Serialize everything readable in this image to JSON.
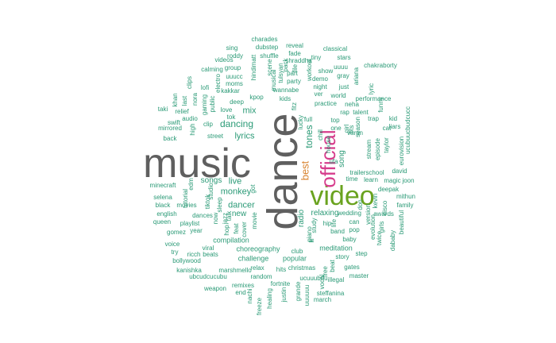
{
  "wordcloud": {
    "words": [
      {
        "text": "music",
        "color": "#5f5f5f"
      },
      {
        "text": "dance",
        "color": "#5f5f5f"
      },
      {
        "text": "video",
        "color": "#6aa31f"
      },
      {
        "text": "official",
        "color": "#d63d8c"
      },
      {
        "text": "best",
        "color": "#d8822d"
      },
      {
        "text": "tones",
        "color": "#2a9a76"
      },
      {
        "text": "dancing",
        "color": "#2a9a76"
      },
      {
        "text": "lyrics",
        "color": "#2a9a76"
      },
      {
        "text": "mix",
        "color": "#2a9a76"
      },
      {
        "text": "monkey",
        "color": "#2a9a76"
      },
      {
        "text": "live",
        "color": "#2a9a76"
      },
      {
        "text": "songs",
        "color": "#2a9a76"
      },
      {
        "text": "dancer",
        "color": "#2a9a76"
      },
      {
        "text": "new",
        "color": "#2a9a76"
      },
      {
        "text": "relaxing",
        "color": "#2a9a76"
      },
      {
        "text": "song",
        "color": "#2a9a76"
      },
      {
        "text": "radio",
        "color": "#2a9a76"
      },
      {
        "text": "charades",
        "color": "#2a9a76"
      },
      {
        "text": "dubstep",
        "color": "#2a9a76"
      },
      {
        "text": "reveal",
        "color": "#2a9a76"
      },
      {
        "text": "fade",
        "color": "#2a9a76"
      },
      {
        "text": "classical",
        "color": "#2a9a76"
      },
      {
        "text": "sing",
        "color": "#2a9a76"
      },
      {
        "text": "roddy",
        "color": "#2a9a76"
      },
      {
        "text": "shuffle",
        "color": "#2a9a76"
      },
      {
        "text": "shraddha",
        "color": "#2a9a76"
      },
      {
        "text": "tiny",
        "color": "#2a9a76"
      },
      {
        "text": "stars",
        "color": "#2a9a76"
      },
      {
        "text": "videos",
        "color": "#2a9a76"
      },
      {
        "text": "file",
        "color": "#2a9a76"
      },
      {
        "text": "show",
        "color": "#2a9a76"
      },
      {
        "text": "uuuu",
        "color": "#2a9a76"
      },
      {
        "text": "chakraborty",
        "color": "#2a9a76"
      },
      {
        "text": "group",
        "color": "#2a9a76"
      },
      {
        "text": "calming",
        "color": "#2a9a76"
      },
      {
        "text": "part",
        "color": "#2a9a76"
      },
      {
        "text": "gray",
        "color": "#2a9a76"
      },
      {
        "text": "uuucc",
        "color": "#2a9a76"
      },
      {
        "text": "demo",
        "color": "#2a9a76"
      },
      {
        "text": "moms",
        "color": "#2a9a76"
      },
      {
        "text": "party",
        "color": "#2a9a76"
      },
      {
        "text": "night",
        "color": "#2a9a76"
      },
      {
        "text": "just",
        "color": "#2a9a76"
      },
      {
        "text": "lofi",
        "color": "#2a9a76"
      },
      {
        "text": "kakkar",
        "color": "#2a9a76"
      },
      {
        "text": "wannabe",
        "color": "#2a9a76"
      },
      {
        "text": "ver",
        "color": "#2a9a76"
      },
      {
        "text": "world",
        "color": "#2a9a76"
      },
      {
        "text": "performance",
        "color": "#2a9a76"
      },
      {
        "text": "kpop",
        "color": "#2a9a76"
      },
      {
        "text": "kids",
        "color": "#2a9a76"
      },
      {
        "text": "practice",
        "color": "#2a9a76"
      },
      {
        "text": "neha",
        "color": "#2a9a76"
      },
      {
        "text": "deep",
        "color": "#2a9a76"
      },
      {
        "text": "rap",
        "color": "#2a9a76"
      },
      {
        "text": "talent",
        "color": "#2a9a76"
      },
      {
        "text": "love",
        "color": "#2a9a76"
      },
      {
        "text": "tok",
        "color": "#2a9a76"
      },
      {
        "text": "top",
        "color": "#2a9a76"
      },
      {
        "text": "trap",
        "color": "#2a9a76"
      },
      {
        "text": "kid",
        "color": "#2a9a76"
      },
      {
        "text": "clip",
        "color": "#2a9a76"
      },
      {
        "text": "one",
        "color": "#2a9a76"
      },
      {
        "text": "cat",
        "color": "#2a9a76"
      },
      {
        "text": "relief",
        "color": "#2a9a76"
      },
      {
        "text": "audio",
        "color": "#2a9a76"
      },
      {
        "text": "girl",
        "color": "#2a9a76"
      },
      {
        "text": "liars",
        "color": "#2a9a76"
      },
      {
        "text": "swift",
        "color": "#2a9a76"
      },
      {
        "text": "full",
        "color": "#2a9a76"
      },
      {
        "text": "taki",
        "color": "#2a9a76"
      },
      {
        "text": "mirrored",
        "color": "#2a9a76"
      },
      {
        "text": "street",
        "color": "#2a9a76"
      },
      {
        "text": "varun",
        "color": "#2a9a76"
      },
      {
        "text": "back",
        "color": "#2a9a76"
      },
      {
        "text": "house",
        "color": "#2a9a76"
      },
      {
        "text": "ufa",
        "color": "#2a9a76"
      },
      {
        "text": "time",
        "color": "#2a9a76"
      },
      {
        "text": "learn",
        "color": "#2a9a76"
      },
      {
        "text": "magic",
        "color": "#2a9a76"
      },
      {
        "text": "joon",
        "color": "#2a9a76"
      },
      {
        "text": "trailerschool",
        "color": "#2a9a76"
      },
      {
        "text": "david",
        "color": "#2a9a76"
      },
      {
        "text": "minecraft",
        "color": "#2a9a76"
      },
      {
        "text": "deepak",
        "color": "#2a9a76"
      },
      {
        "text": "selena",
        "color": "#2a9a76"
      },
      {
        "text": "mithun",
        "color": "#2a9a76"
      },
      {
        "text": "black",
        "color": "#2a9a76"
      },
      {
        "text": "movies",
        "color": "#2a9a76"
      },
      {
        "text": "family",
        "color": "#2a9a76"
      },
      {
        "text": "english",
        "color": "#2a9a76"
      },
      {
        "text": "dances",
        "color": "#2a9a76"
      },
      {
        "text": "wedding",
        "color": "#2a9a76"
      },
      {
        "text": "awards",
        "color": "#2a9a76"
      },
      {
        "text": "queen",
        "color": "#2a9a76"
      },
      {
        "text": "can",
        "color": "#2a9a76"
      },
      {
        "text": "playlist",
        "color": "#2a9a76"
      },
      {
        "text": "year",
        "color": "#2a9a76"
      },
      {
        "text": "hip",
        "color": "#2a9a76"
      },
      {
        "text": "pop",
        "color": "#2a9a76"
      },
      {
        "text": "band",
        "color": "#2a9a76"
      },
      {
        "text": "gomez",
        "color": "#2a9a76"
      },
      {
        "text": "compilation",
        "color": "#2a9a76"
      },
      {
        "text": "baby",
        "color": "#2a9a76"
      },
      {
        "text": "voice",
        "color": "#2a9a76"
      },
      {
        "text": "viral",
        "color": "#2a9a76"
      },
      {
        "text": "choreography",
        "color": "#2a9a76"
      },
      {
        "text": "meditation",
        "color": "#2a9a76"
      },
      {
        "text": "try",
        "color": "#2a9a76"
      },
      {
        "text": "ricch",
        "color": "#2a9a76"
      },
      {
        "text": "beats",
        "color": "#2a9a76"
      },
      {
        "text": "club",
        "color": "#2a9a76"
      },
      {
        "text": "step",
        "color": "#2a9a76"
      },
      {
        "text": "bollywood",
        "color": "#2a9a76"
      },
      {
        "text": "challenge",
        "color": "#2a9a76"
      },
      {
        "text": "popular",
        "color": "#2a9a76"
      },
      {
        "text": "story",
        "color": "#2a9a76"
      },
      {
        "text": "kanishka",
        "color": "#2a9a76"
      },
      {
        "text": "marshmello",
        "color": "#2a9a76"
      },
      {
        "text": "relax",
        "color": "#2a9a76"
      },
      {
        "text": "christmas",
        "color": "#2a9a76"
      },
      {
        "text": "gates",
        "color": "#2a9a76"
      },
      {
        "text": "ubcudcucubu",
        "color": "#2a9a76"
      },
      {
        "text": "random",
        "color": "#2a9a76"
      },
      {
        "text": "hits",
        "color": "#2a9a76"
      },
      {
        "text": "master",
        "color": "#2a9a76"
      },
      {
        "text": "fortnite",
        "color": "#2a9a76"
      },
      {
        "text": "ucuuubuu",
        "color": "#2a9a76"
      },
      {
        "text": "illegal",
        "color": "#2a9a76"
      },
      {
        "text": "weapon",
        "color": "#2a9a76"
      },
      {
        "text": "remixes",
        "color": "#2a9a76"
      },
      {
        "text": "end",
        "color": "#2a9a76"
      },
      {
        "text": "steffanina",
        "color": "#2a9a76"
      },
      {
        "text": "march",
        "color": "#2a9a76"
      },
      {
        "text": "hindimatt",
        "color": "#2a9a76"
      },
      {
        "text": "scene",
        "color": "#2a9a76"
      },
      {
        "text": "musical",
        "color": "#2a9a76"
      },
      {
        "text": "tulsyan",
        "color": "#2a9a76"
      },
      {
        "text": "pack",
        "color": "#2a9a76"
      },
      {
        "text": "workout",
        "color": "#2a9a76"
      },
      {
        "text": "gaming",
        "color": "#2a9a76"
      },
      {
        "text": "public",
        "color": "#2a9a76"
      },
      {
        "text": "electro",
        "color": "#2a9a76"
      },
      {
        "text": "last",
        "color": "#2a9a76"
      },
      {
        "text": "nora",
        "color": "#2a9a76"
      },
      {
        "text": "clips",
        "color": "#2a9a76"
      },
      {
        "text": "khan",
        "color": "#2a9a76"
      },
      {
        "text": "high",
        "color": "#2a9a76"
      },
      {
        "text": "sleep",
        "color": "#2a9a76"
      },
      {
        "text": "studio",
        "color": "#2a9a76"
      },
      {
        "text": "edm",
        "color": "#2a9a76"
      },
      {
        "text": "tutorial",
        "color": "#2a9a76"
      },
      {
        "text": "tiktok",
        "color": "#2a9a76"
      },
      {
        "text": "jazz",
        "color": "#2a9a76"
      },
      {
        "text": "hop",
        "color": "#2a9a76"
      },
      {
        "text": "feat",
        "color": "#2a9a76"
      },
      {
        "text": "cover",
        "color": "#2a9a76"
      },
      {
        "text": "movie",
        "color": "#2a9a76"
      },
      {
        "text": "got",
        "color": "#2a9a76"
      },
      {
        "text": "talk",
        "color": "#2a9a76"
      },
      {
        "text": "now",
        "color": "#2a9a76"
      },
      {
        "text": "chill",
        "color": "#2a9a76"
      },
      {
        "text": "piano",
        "color": "#2a9a76"
      },
      {
        "text": "study",
        "color": "#2a9a76"
      },
      {
        "text": "lil",
        "color": "#2a9a76"
      },
      {
        "text": "ariana",
        "color": "#2a9a76"
      },
      {
        "text": "lyric",
        "color": "#2a9a76"
      },
      {
        "text": "funny",
        "color": "#2a9a76"
      },
      {
        "text": "taylor",
        "color": "#2a9a76"
      },
      {
        "text": "stream",
        "color": "#2a9a76"
      },
      {
        "text": "episode",
        "color": "#2a9a76"
      },
      {
        "text": "season",
        "color": "#2a9a76"
      },
      {
        "text": "bts",
        "color": "#2a9a76"
      },
      {
        "text": "ucubuucbudcucc",
        "color": "#2a9a76"
      },
      {
        "text": "eurovision",
        "color": "#2a9a76"
      },
      {
        "text": "version",
        "color": "#2a9a76"
      },
      {
        "text": "evolution",
        "color": "#2a9a76"
      },
      {
        "text": "girls",
        "color": "#2a9a76"
      },
      {
        "text": "twice",
        "color": "#2a9a76"
      },
      {
        "text": "dababy",
        "color": "#2a9a76"
      },
      {
        "text": "beautiful",
        "color": "#2a9a76"
      },
      {
        "text": "disco",
        "color": "#2a9a76"
      },
      {
        "text": "kevin",
        "color": "#2a9a76"
      },
      {
        "text": "don",
        "color": "#2a9a76"
      },
      {
        "text": "life",
        "color": "#2a9a76"
      },
      {
        "text": "free",
        "color": "#2a9a76"
      },
      {
        "text": "grande",
        "color": "#2a9a76"
      },
      {
        "text": "vocal",
        "color": "#2a9a76"
      },
      {
        "text": "nachi",
        "color": "#2a9a76"
      },
      {
        "text": "freeze",
        "color": "#2a9a76"
      },
      {
        "text": "healing",
        "color": "#2a9a76"
      },
      {
        "text": "justin",
        "color": "#2a9a76"
      },
      {
        "text": "uuuuuu",
        "color": "#2a9a76"
      },
      {
        "text": "beat",
        "color": "#2a9a76"
      },
      {
        "text": "lucky",
        "color": "#2a9a76"
      },
      {
        "text": "fitz",
        "color": "#2a9a76"
      }
    ]
  }
}
